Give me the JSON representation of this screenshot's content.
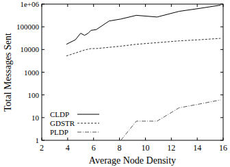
{
  "chart_data": {
    "type": "line",
    "x_label": "Average Node Density",
    "y_label": "Total Messages Sent",
    "log": "y",
    "legend": "lower left",
    "xlim": [
      2,
      16
    ],
    "xticks": [
      2,
      4,
      6,
      8,
      10,
      12,
      14,
      16
    ],
    "ylim": [
      1,
      1000000
    ],
    "yticks": [
      1,
      10,
      100,
      1000,
      10000,
      100000,
      {
        "value": 1000000,
        "label": "1e+06"
      }
    ],
    "series": [
      {
        "name": "CLDP",
        "color": "#000000",
        "line_style": "solid",
        "x": [
          3.9,
          4.6,
          5.0,
          5.3,
          5.6,
          5.8,
          6.2,
          7.2,
          8.1,
          9.3,
          10.9,
          12.6,
          14.2,
          15.8
        ],
        "values": [
          17000,
          27000,
          52000,
          42000,
          53000,
          70000,
          75000,
          180000,
          220000,
          320000,
          270000,
          480000,
          650000,
          900000
        ]
      },
      {
        "name": "GDSTR",
        "color": "#333333",
        "line_style": "dashed",
        "x": [
          3.9,
          4.6,
          5.3,
          5.8,
          6.2,
          7.2,
          8.1,
          9.3,
          10.9,
          12.6,
          14.2,
          15.8
        ],
        "values": [
          5200,
          7000,
          9500,
          11000,
          11000,
          12500,
          14000,
          17000,
          20000,
          24000,
          27000,
          31000
        ]
      },
      {
        "name": "PLDP",
        "color": "#555555",
        "line_style": "dashdot",
        "x": [
          8.1,
          9.3,
          10.9,
          12.6,
          14.2,
          15.8
        ],
        "values": [
          1,
          7,
          7,
          27,
          40,
          60
        ]
      }
    ]
  }
}
